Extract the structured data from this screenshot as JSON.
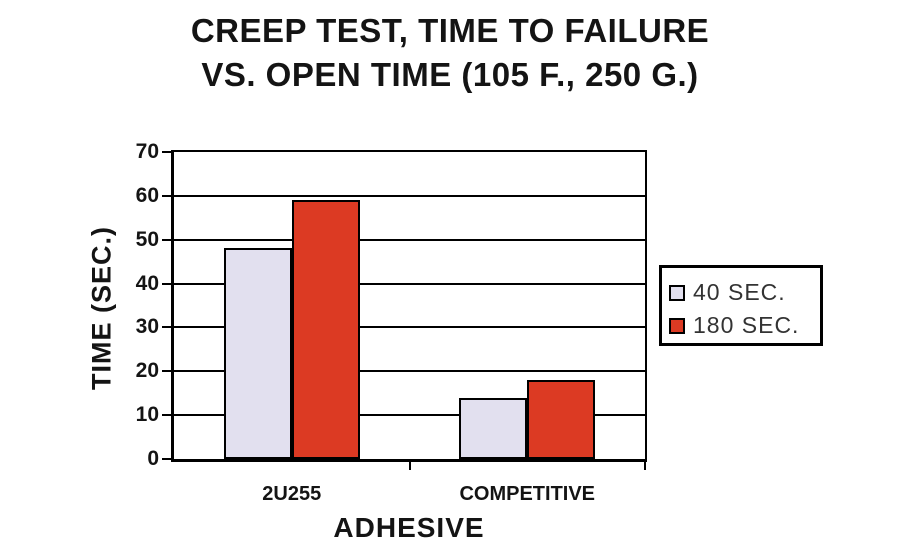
{
  "title": {
    "line1": "CREEP TEST, TIME TO FAILURE",
    "line2": "VS. OPEN TIME (105 F., 250 G.)"
  },
  "chart_data": {
    "type": "bar",
    "title": "CREEP TEST, TIME TO FAILURE VS. OPEN TIME (105 F., 250 G.)",
    "categories": [
      "2U255",
      "COMPETITIVE"
    ],
    "series": [
      {
        "name": "40 SEC.",
        "color": "#E2E0EF",
        "values": [
          48,
          14
        ]
      },
      {
        "name": "180 SEC.",
        "color": "#DC3A23",
        "values": [
          59,
          18
        ]
      }
    ],
    "xlabel": "ADHESIVE",
    "ylabel": "TIME (SEC.)",
    "ylim": [
      0,
      70
    ],
    "yticks": [
      0,
      10,
      20,
      30,
      40,
      50,
      60,
      70
    ],
    "grid": true,
    "legend_position": "right"
  },
  "colors": {
    "background": "#FFFFFF",
    "axis": "#000000",
    "text": "#141414",
    "legend_text": "#333333"
  }
}
